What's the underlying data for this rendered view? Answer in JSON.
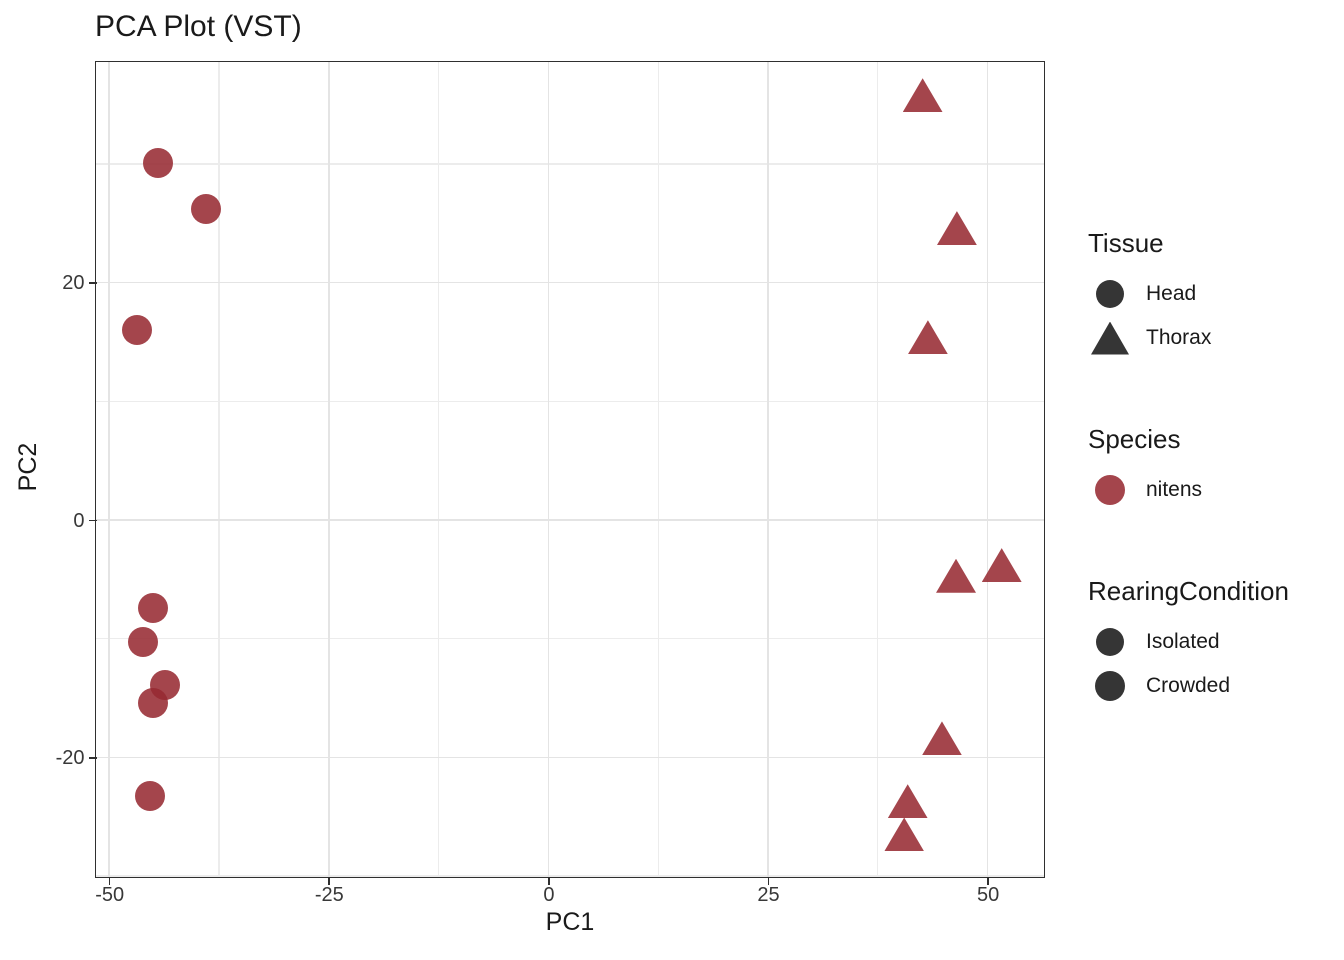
{
  "title": "PCA Plot (VST)",
  "colors": {
    "point_fill_rgba": "rgba(151,41,49,0.87)",
    "species_accent_hex": "#A5464E",
    "legend_key_dark_rgba": "rgba(25,25,25,0.88)",
    "grid_major_hex": "#E4E4E4",
    "grid_minor_hex": "#ECECEC",
    "panel_border_hex": "#2F2F2F",
    "text_hex": "#1A1A1A"
  },
  "chart_data": {
    "type": "scatter",
    "title": "PCA Plot (VST)",
    "xlabel": "PC1",
    "ylabel": "PC2",
    "xlim": [
      -51.5,
      56.3
    ],
    "ylim": [
      -30,
      38.6
    ],
    "x_major_ticks": [
      -50,
      -25,
      0,
      25,
      50
    ],
    "x_minor_gridlines": [
      -37.5,
      -12.5,
      12.5,
      37.5
    ],
    "y_major_ticks": [
      20,
      0,
      -20
    ],
    "y_minor_gridlines": [
      30,
      10,
      -10,
      -30
    ],
    "grid": true,
    "legend_position": "right",
    "series": [
      {
        "name": "Head",
        "shape": "circle",
        "species": "nitens",
        "color": "#A5464E",
        "points": [
          [
            -44.4,
            30.1
          ],
          [
            -39.0,
            26.2
          ],
          [
            -46.8,
            16.0
          ],
          [
            -45.0,
            -7.4
          ],
          [
            -46.2,
            -10.3
          ],
          [
            -43.7,
            -13.9
          ],
          [
            -45.0,
            -15.4
          ],
          [
            -45.3,
            -23.3
          ]
        ]
      },
      {
        "name": "Thorax",
        "shape": "triangle",
        "species": "nitens",
        "color": "#A5464E",
        "points": [
          [
            42.6,
            35.8
          ],
          [
            46.5,
            24.6
          ],
          [
            43.2,
            15.4
          ],
          [
            51.6,
            -3.8
          ],
          [
            46.4,
            -4.7
          ],
          [
            44.8,
            -18.4
          ],
          [
            40.9,
            -23.7
          ],
          [
            40.5,
            -26.5
          ]
        ]
      }
    ]
  },
  "legend": {
    "groups": [
      {
        "id": "tissue",
        "title": "Tissue",
        "items": [
          {
            "label": "Head",
            "shape": "circle-dark",
            "icon": "head-circle-icon"
          },
          {
            "label": "Thorax",
            "shape": "triangle-dark",
            "icon": "thorax-triangle-icon"
          }
        ]
      },
      {
        "id": "species",
        "title": "Species",
        "items": [
          {
            "label": "nitens",
            "shape": "circle-red",
            "icon": "nitens-circle-icon"
          }
        ]
      },
      {
        "id": "rearingcondition",
        "title": "RearingCondition",
        "items": [
          {
            "label": "Isolated",
            "shape": "circle-dark",
            "icon": "isolated-circle-icon"
          },
          {
            "label": "Crowded",
            "shape": "circle-dark2",
            "icon": "crowded-circle-icon"
          }
        ]
      }
    ]
  }
}
